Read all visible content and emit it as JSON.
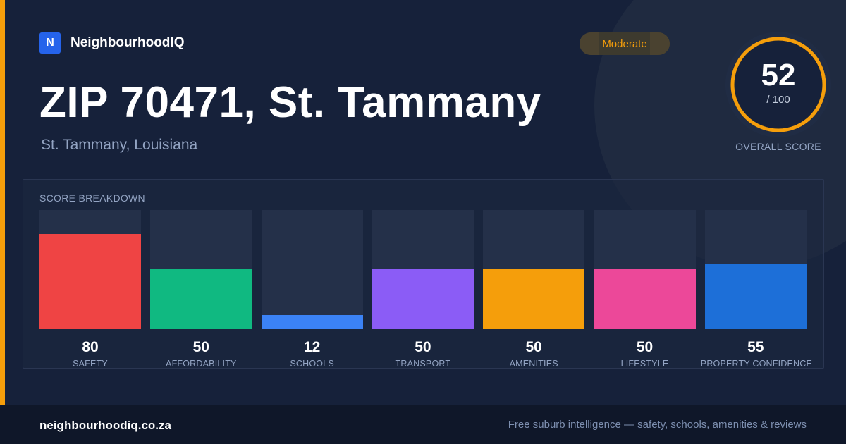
{
  "brand": {
    "logo_letter": "N",
    "name": "NeighbourhoodIQ"
  },
  "location": {
    "title": "ZIP 70471, St. Tammany",
    "subtitle": "St. Tammany, Louisiana"
  },
  "rating_badge": "Moderate",
  "overall": {
    "score": "52",
    "max": "/ 100",
    "label": "OVERALL SCORE",
    "fraction": 0.52
  },
  "breakdown": {
    "title": "SCORE BREAKDOWN",
    "items": [
      {
        "label": "SAFETY",
        "value": "80",
        "level": 0.8,
        "color": "#ef4444"
      },
      {
        "label": "AFFORDABILITY",
        "value": "50",
        "level": 0.5,
        "color": "#10b981"
      },
      {
        "label": "SCHOOLS",
        "value": "12",
        "level": 0.12,
        "color": "#3b82f6"
      },
      {
        "label": "TRANSPORT",
        "value": "50",
        "level": 0.5,
        "color": "#8b5cf6"
      },
      {
        "label": "AMENITIES",
        "value": "50",
        "level": 0.5,
        "color": "#f59e0b"
      },
      {
        "label": "LIFESTYLE",
        "value": "50",
        "level": 0.5,
        "color": "#ec4899"
      },
      {
        "label": "PROPERTY CONFIDENCE",
        "value": "55",
        "level": 0.55,
        "color": "#1d6fd8"
      }
    ]
  },
  "footer": {
    "url": "neighbourhoodiq.co.za",
    "tagline": "Free suburb intelligence — safety, schools, amenities & reviews"
  },
  "colors": {
    "accent": "#f59e0b",
    "background": "#16213a",
    "muted_text": "#93a4c3"
  }
}
